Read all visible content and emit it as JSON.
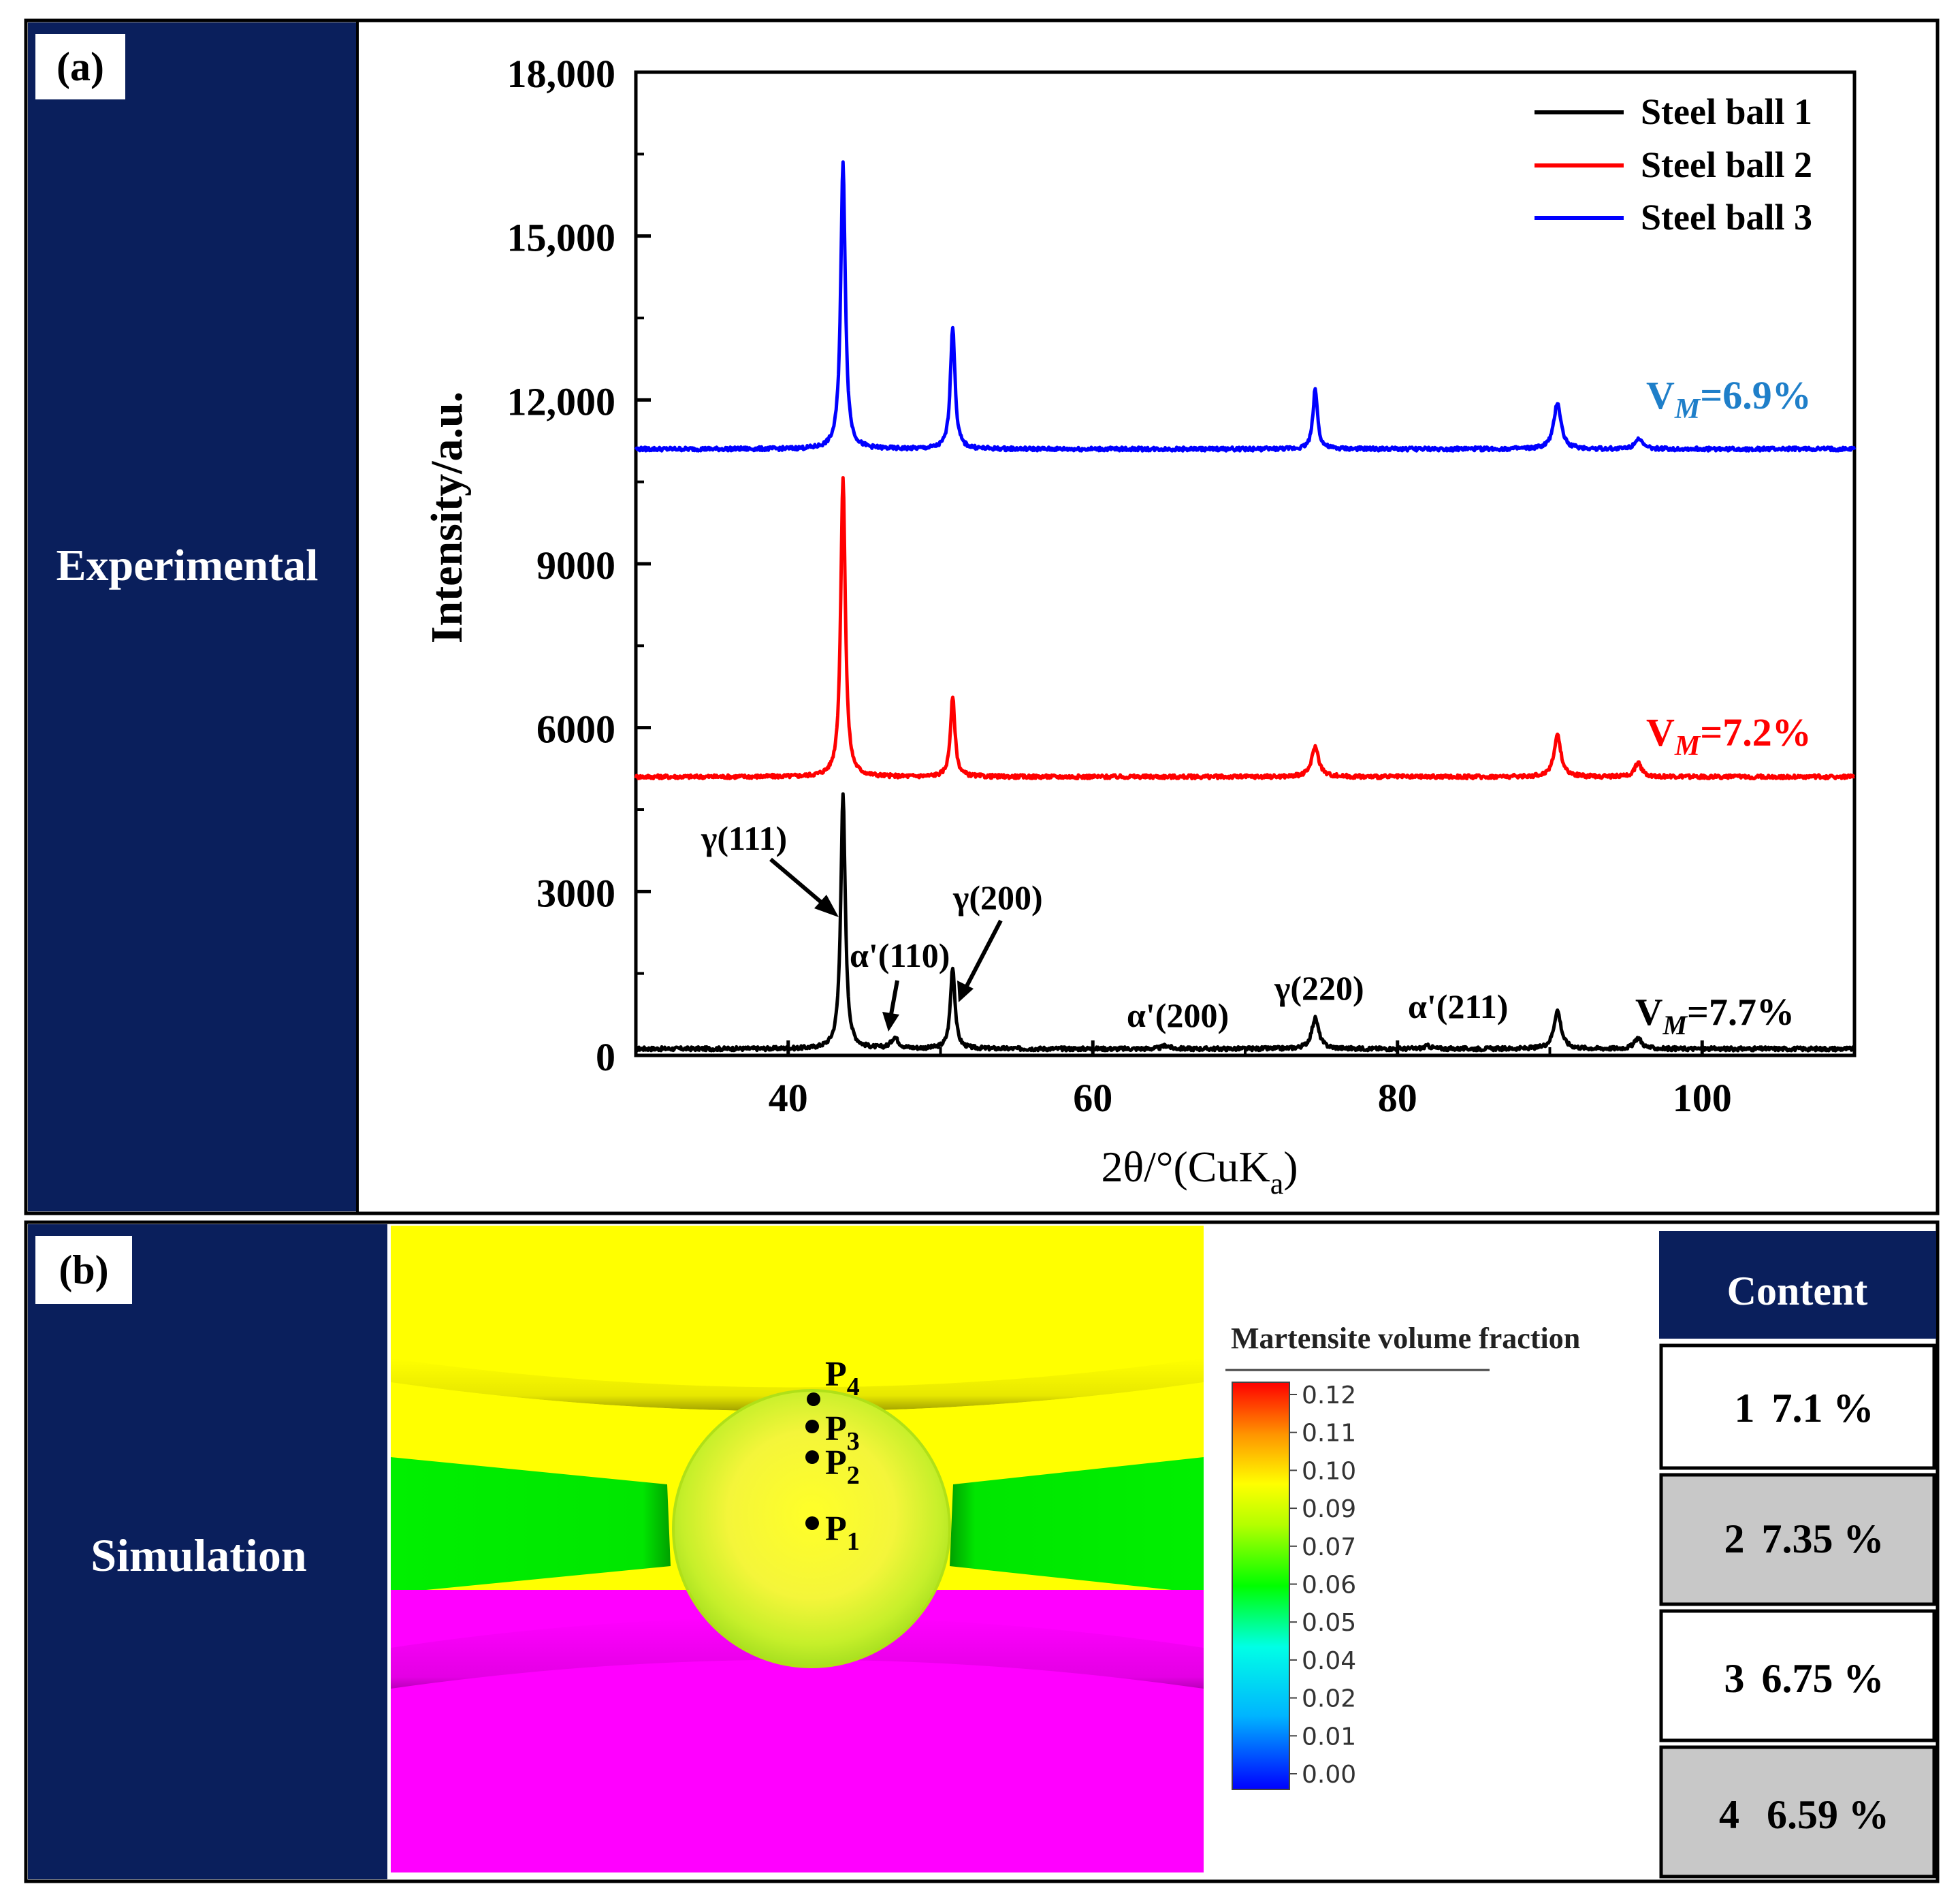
{
  "panel_a": {
    "tag": "(a)",
    "side_label": "Experimental",
    "annotations": {
      "g111": "γ(111)",
      "a110": "α'(110)",
      "g200": "γ(200)",
      "a200": "α'(200)",
      "g220": "γ(220)",
      "a211": "α'(211)"
    },
    "vm_labels": [
      {
        "series": "Steel ball 3",
        "prefix": "V",
        "sub": "M",
        "value": "=6.9%",
        "color": "#1f7fc9"
      },
      {
        "series": "Steel ball 2",
        "prefix": "V",
        "sub": "M",
        "value": "=7.2%",
        "color": "#ff0000"
      },
      {
        "series": "Steel ball 1",
        "prefix": "V",
        "sub": "M",
        "value": "=7.7%",
        "color": "#000000"
      }
    ]
  },
  "chart_data": {
    "type": "line",
    "title": "",
    "xlabel": "2θ/°(CuK",
    "xlabel_sub": "a",
    "xlabel_close": ")",
    "ylabel": "Intensity/a.u.",
    "xlim": [
      30,
      110
    ],
    "ylim": [
      0,
      18000
    ],
    "xticks": [
      40,
      60,
      80,
      100
    ],
    "yticks": [
      0,
      3000,
      6000,
      9000,
      12000,
      15000,
      18000
    ],
    "yticklabels": [
      "0",
      "3000",
      "6000",
      "9000",
      "12,000",
      "15,000",
      "18,000"
    ],
    "grid": false,
    "legend_position": "top-right",
    "series": [
      {
        "name": "Steel ball 1",
        "color": "#000000",
        "baseline": 120,
        "peaks": [
          [
            43.6,
            4650
          ],
          [
            47.0,
            200
          ],
          [
            50.8,
            1500
          ],
          [
            64.8,
            60
          ],
          [
            74.6,
            560
          ],
          [
            82.0,
            50
          ],
          [
            90.5,
            700
          ],
          [
            95.8,
            200
          ]
        ]
      },
      {
        "name": "Steel ball 2",
        "color": "#ff0000",
        "baseline": 5100,
        "peaks": [
          [
            43.6,
            5500
          ],
          [
            50.8,
            1450
          ],
          [
            74.6,
            550
          ],
          [
            90.5,
            750
          ],
          [
            95.8,
            250
          ]
        ]
      },
      {
        "name": "Steel ball 3",
        "color": "#0000ff",
        "baseline": 11100,
        "peaks": [
          [
            43.6,
            5250
          ],
          [
            50.8,
            2250
          ],
          [
            74.6,
            1100
          ],
          [
            90.5,
            850
          ],
          [
            95.8,
            200
          ]
        ]
      }
    ]
  },
  "panel_b": {
    "tag": "(b)",
    "side_label": "Simulation",
    "points": [
      {
        "label": "P",
        "sub": "4"
      },
      {
        "label": "P",
        "sub": "3"
      },
      {
        "label": "P",
        "sub": "2"
      },
      {
        "label": "P",
        "sub": "1"
      }
    ],
    "legend_title": "Martensite volume fraction",
    "colorbar_ticks": [
      "0.12",
      "0.11",
      "0.10",
      "0.09",
      "0.07",
      "0.06",
      "0.05",
      "0.04",
      "0.02",
      "0.01",
      "0.00"
    ],
    "table_header": "Content",
    "table_rows": [
      {
        "point": "1",
        "value": "7.1 %"
      },
      {
        "point": "2",
        "value": "7.35 %"
      },
      {
        "point": "3",
        "value": "6.75 %"
      },
      {
        "point": "4",
        "value": "6.59 %"
      }
    ]
  },
  "colors": {
    "navy": "#0a1f5c",
    "yellow": "#ffff00",
    "green": "#00ee00",
    "magenta": "#ff00ff",
    "table_gray": "#c8c8c8"
  }
}
